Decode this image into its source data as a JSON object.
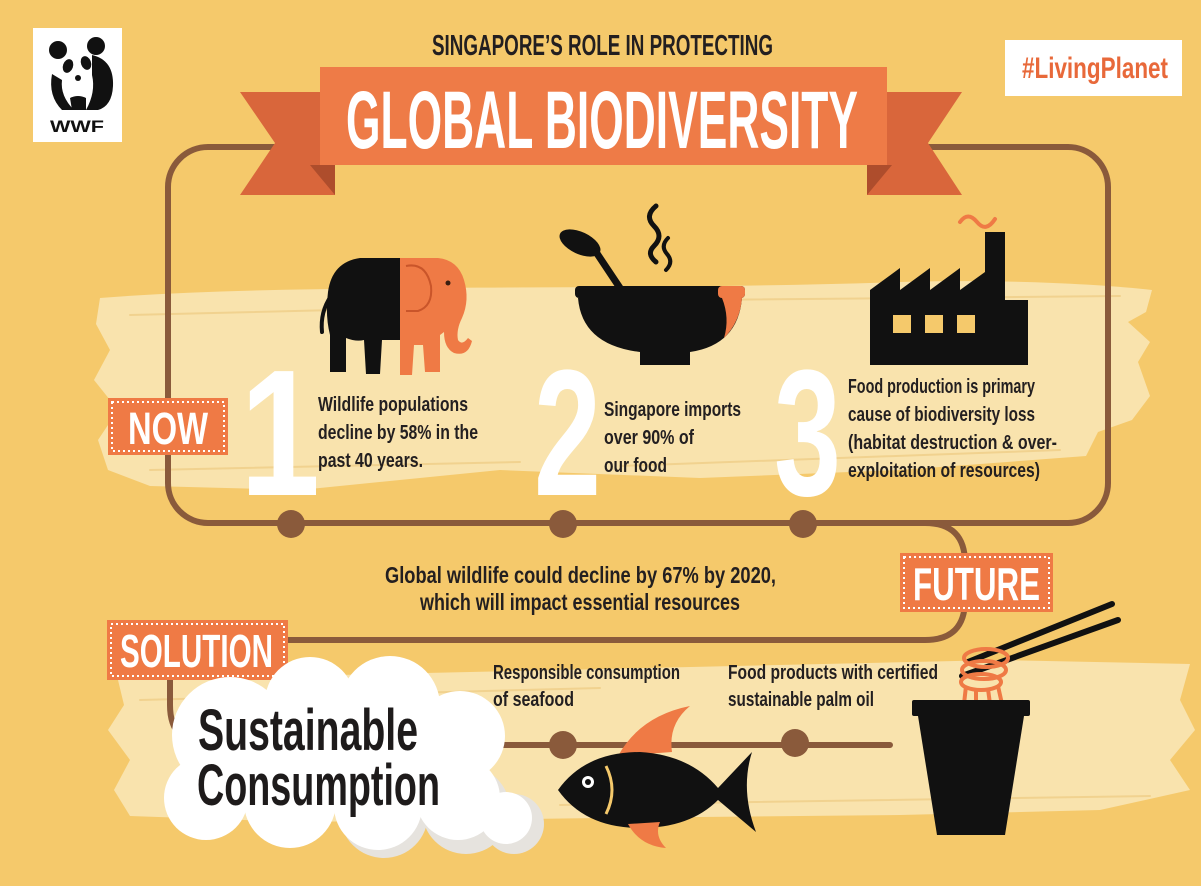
{
  "logo": {
    "name": "WWF",
    "icon": "panda-icon"
  },
  "header": {
    "subtitle": "SINGAPORE’S ROLE IN PROTECTING",
    "title": "GLOBAL BIODIVERSITY",
    "hashtag": "#LivingPlanet"
  },
  "now": {
    "label": "NOW",
    "facts": [
      {
        "number": "1",
        "icon": "elephant-icon",
        "lines": [
          "Wildlife populations",
          "decline by 58% in the",
          "past 40 years."
        ]
      },
      {
        "number": "2",
        "icon": "soup-bowl-icon",
        "lines": [
          "Singapore imports",
          "over 90% of",
          "our food"
        ]
      },
      {
        "number": "3",
        "icon": "factory-icon",
        "lines": [
          "Food production is primary",
          "cause of biodiversity loss",
          "(habitat destruction & over-",
          "exploitation of resources)"
        ]
      }
    ]
  },
  "future": {
    "label": "FUTURE",
    "lines": [
      "Global wildlife could decline by 67% by 2020,",
      "which will impact essential resources"
    ]
  },
  "solution": {
    "label": "SOLUTION",
    "headline": [
      "Sustainable",
      "Consumption"
    ],
    "items": [
      {
        "icon": "fish-icon",
        "lines": [
          "Responsible consumption",
          "of seafood"
        ]
      },
      {
        "icon": "noodle-cup-icon",
        "lines": [
          "Food products with certified",
          "sustainable palm oil"
        ]
      }
    ]
  },
  "colors": {
    "background": "#F5C96B",
    "brush": "#F9E3AD",
    "accent": "#EF7A45",
    "ribbon_end": "#D9663B",
    "path": "#8A5A3B",
    "text": "#231F20"
  }
}
